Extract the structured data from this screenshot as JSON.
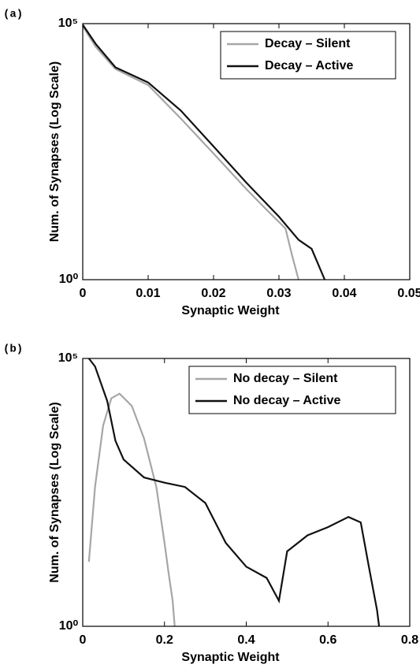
{
  "chart_data": [
    {
      "type": "line",
      "panel_label": "(a)",
      "xlabel": "Synaptic Weight",
      "ylabel": "Num. of Synapses (Log Scale)",
      "yscale": "log",
      "legend": "upper right",
      "xlim": [
        0,
        0.05
      ],
      "xticks": [
        0,
        0.01,
        0.02,
        0.03,
        0.04,
        0.05
      ],
      "ylim": [
        1,
        100000
      ],
      "yticks": [
        {
          "value": 1,
          "label": "10⁰"
        },
        {
          "value": 100000,
          "label": "10⁵"
        }
      ],
      "series": [
        {
          "name": "Decay – Silent",
          "color": "#a6a6a6",
          "x": [
            0,
            0.002,
            0.005,
            0.01,
            0.015,
            0.02,
            0.025,
            0.028,
            0.031,
            0.032,
            0.033
          ],
          "values": [
            89000,
            35000,
            13000,
            6300,
            1400,
            290,
            59,
            24,
            10,
            3,
            1
          ]
        },
        {
          "name": "Decay – Active",
          "color": "#111111",
          "x": [
            0,
            0.002,
            0.005,
            0.01,
            0.015,
            0.02,
            0.025,
            0.03,
            0.033,
            0.035,
            0.036,
            0.037
          ],
          "values": [
            95000,
            40000,
            14000,
            7100,
            2000,
            400,
            79,
            17,
            6,
            4,
            2,
            1
          ]
        }
      ]
    },
    {
      "type": "line",
      "panel_label": "(b)",
      "xlabel": "Synaptic Weight",
      "ylabel": "Num. of Synapses (Log Scale)",
      "yscale": "log",
      "legend": "upper right",
      "xlim": [
        0,
        0.8
      ],
      "xticks": [
        0,
        0.2,
        0.4,
        0.6,
        0.8
      ],
      "ylim": [
        1,
        100000
      ],
      "yticks": [
        {
          "value": 1,
          "label": "10⁰"
        },
        {
          "value": 100000,
          "label": "10⁵"
        }
      ],
      "series": [
        {
          "name": "No decay – Silent",
          "color": "#a6a6a6",
          "x": [
            0.015,
            0.03,
            0.05,
            0.07,
            0.09,
            0.12,
            0.15,
            0.18,
            0.2,
            0.21,
            0.22,
            0.225
          ],
          "values": [
            16,
            400,
            5600,
            18000,
            22000,
            13000,
            3200,
            400,
            36,
            10,
            3,
            1
          ]
        },
        {
          "name": "No decay – Active",
          "color": "#111111",
          "x": [
            0.015,
            0.03,
            0.06,
            0.08,
            0.1,
            0.15,
            0.2,
            0.25,
            0.3,
            0.35,
            0.4,
            0.45,
            0.48,
            0.5,
            0.55,
            0.6,
            0.65,
            0.68,
            0.7,
            0.72,
            0.725
          ],
          "values": [
            100000,
            71000,
            16000,
            2900,
            1300,
            600,
            480,
            400,
            200,
            36,
            13,
            8,
            3,
            25,
            50,
            71,
            110,
            87,
            13,
            2,
            1
          ]
        }
      ]
    }
  ]
}
